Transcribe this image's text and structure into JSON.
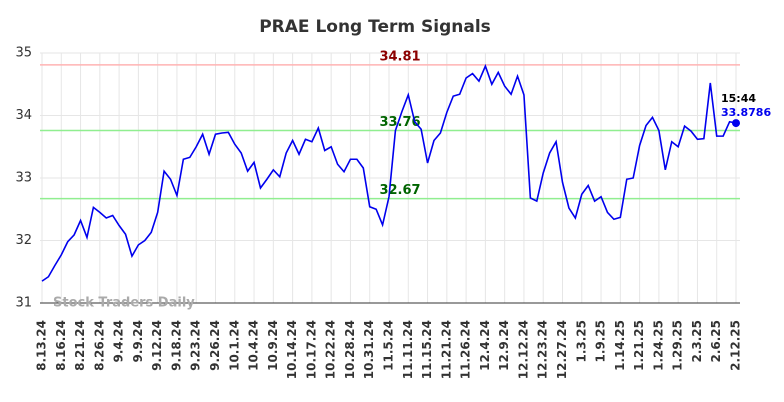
{
  "chart_data": {
    "type": "line",
    "title": "PRAE Long Term Signals",
    "categories": [
      "8.13.24",
      null,
      null,
      "8.16.24",
      null,
      null,
      "8.21.24",
      null,
      null,
      "8.26.24",
      null,
      null,
      "9.4.24",
      null,
      null,
      "9.9.24",
      null,
      null,
      "9.12.24",
      null,
      null,
      "9.18.24",
      null,
      null,
      "9.23.24",
      null,
      null,
      "9.26.24",
      null,
      null,
      "10.1.24",
      null,
      null,
      "10.4.24",
      null,
      null,
      "10.9.24",
      null,
      null,
      "10.14.24",
      null,
      null,
      "10.17.24",
      null,
      null,
      "10.22.24",
      null,
      null,
      "10.28.24",
      null,
      null,
      "10.31.24",
      null,
      null,
      "11.5.24",
      null,
      null,
      "11.11.24",
      null,
      null,
      "11.15.24",
      null,
      null,
      "11.21.24",
      null,
      null,
      "11.26.24",
      null,
      null,
      "12.4.24",
      null,
      null,
      "12.9.24",
      null,
      null,
      "12.12.24",
      null,
      null,
      "12.23.24",
      null,
      null,
      "12.27.24",
      null,
      null,
      "1.3.25",
      null,
      null,
      "1.9.25",
      null,
      null,
      "1.14.25",
      null,
      null,
      "1.21.25",
      null,
      null,
      "1.24.25",
      null,
      null,
      "1.29.25",
      null,
      null,
      "2.3.25",
      null,
      null,
      "2.6.25",
      null,
      null,
      "2.12.25"
    ],
    "series": [
      {
        "name": "PRAE",
        "color": "#0000ee",
        "values": [
          31.35,
          31.42,
          31.6,
          31.77,
          31.98,
          32.09,
          32.32,
          32.05,
          32.53,
          32.45,
          32.36,
          32.4,
          32.24,
          32.1,
          31.75,
          31.93,
          32.0,
          32.13,
          32.45,
          33.11,
          32.98,
          32.72,
          33.3,
          33.33,
          33.5,
          33.7,
          33.38,
          33.7,
          33.72,
          33.73,
          33.54,
          33.4,
          33.11,
          33.25,
          32.84,
          32.98,
          33.13,
          33.02,
          33.4,
          33.6,
          33.38,
          33.62,
          33.58,
          33.8,
          33.44,
          33.5,
          33.22,
          33.1,
          33.3,
          33.3,
          33.16,
          32.54,
          32.5,
          32.25,
          32.7,
          33.76,
          34.06,
          34.33,
          33.9,
          33.78,
          33.24,
          33.6,
          33.72,
          34.05,
          34.31,
          34.34,
          34.6,
          34.67,
          34.55,
          34.79,
          34.5,
          34.69,
          34.47,
          34.34,
          34.63,
          34.33,
          32.68,
          32.63,
          33.08,
          33.4,
          33.58,
          32.93,
          32.52,
          32.36,
          32.74,
          32.88,
          32.63,
          32.7,
          32.45,
          32.34,
          32.37,
          32.98,
          33.0,
          33.52,
          33.84,
          33.97,
          33.76,
          33.13,
          33.58,
          33.5,
          33.83,
          33.75,
          33.62,
          33.63,
          34.52,
          33.67,
          33.67,
          33.9,
          33.8786
        ]
      }
    ],
    "hlines": [
      {
        "value": 34.81,
        "color": "#ffb3b3",
        "label_color": "#8b0000"
      },
      {
        "value": 33.76,
        "color": "#90ee90",
        "label_color": "#006400"
      },
      {
        "value": 32.67,
        "color": "#90ee90",
        "label_color": "#006400"
      }
    ],
    "last_time": "15:44",
    "watermark": "Stock Traders Daily",
    "ylim": [
      31,
      35
    ],
    "yticks": [
      31,
      32,
      33,
      34,
      35
    ],
    "grid": true
  }
}
